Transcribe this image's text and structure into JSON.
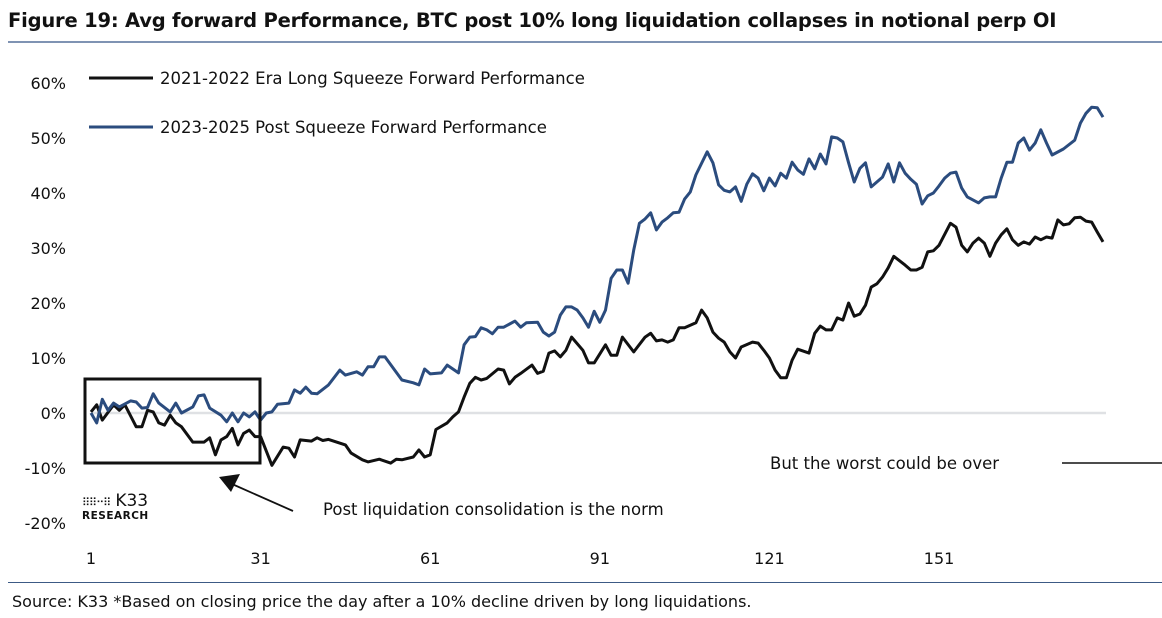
{
  "title": "Figure 19: Avg forward Performance, BTC post 10% long liquidation collapses in notional perp OI",
  "source": "Source: K33 *Based on closing price the day after a 10% decline driven by long liquidations.",
  "logo": {
    "name": "K33",
    "sub": "RESEARCH",
    "mark": "dot-grid-icon"
  },
  "colors": {
    "series_black": "#111111",
    "series_blue": "#2b4c7e",
    "zero_line": "#dfe1e4",
    "rule": "#7f93b3"
  },
  "annotations": {
    "box_label": "Post liquidation consolidation is the norm",
    "right_label": "But the worst could be over"
  },
  "chart_data": {
    "type": "line",
    "title": "Figure 19: Avg forward Performance, BTC post 10% long liquidation collapses in notional perp OI",
    "xlabel": "",
    "ylabel": "",
    "xlim": [
      1,
      180
    ],
    "ylim": [
      -20,
      60
    ],
    "x_ticks": [
      "1",
      "31",
      "61",
      "91",
      "121",
      "151"
    ],
    "y_ticks": [
      "60%",
      "50%",
      "40%",
      "30%",
      "20%",
      "10%",
      "0%",
      "-10%",
      "-20%"
    ],
    "grid": false,
    "legend": "top-left",
    "series": [
      {
        "name": "2021-2022 Era Long Squeeze Forward Performance",
        "color": "#111111",
        "points": [
          [
            1,
            0.2
          ],
          [
            2,
            1.5
          ],
          [
            3,
            -1.3
          ],
          [
            5,
            1.5
          ],
          [
            6,
            0.5
          ],
          [
            7,
            1.5
          ],
          [
            9,
            -2.5
          ],
          [
            10,
            -2.5
          ],
          [
            11,
            0.5
          ],
          [
            12,
            0.2
          ],
          [
            13,
            -1.8
          ],
          [
            14,
            -2.2
          ],
          [
            15,
            -0.4
          ],
          [
            16,
            -1.8
          ],
          [
            17,
            -2.5
          ],
          [
            19,
            -5.3
          ],
          [
            21,
            -5.3
          ],
          [
            22,
            -4.5
          ],
          [
            23,
            -7.6
          ],
          [
            24,
            -4.9
          ],
          [
            25,
            -4.3
          ],
          [
            26,
            -2.8
          ],
          [
            27,
            -5.8
          ],
          [
            28,
            -3.7
          ],
          [
            29,
            -3.1
          ],
          [
            30,
            -4.3
          ],
          [
            31,
            -4.3
          ],
          [
            33,
            -9.5
          ],
          [
            35,
            -6.2
          ],
          [
            36,
            -6.4
          ],
          [
            37,
            -8
          ],
          [
            38,
            -4.9
          ],
          [
            40,
            -5.1
          ],
          [
            41,
            -4.5
          ],
          [
            42,
            -5
          ],
          [
            43,
            -4.8
          ],
          [
            46,
            -5.8
          ],
          [
            47,
            -7.3
          ],
          [
            49,
            -8.5
          ],
          [
            50,
            -8.9
          ],
          [
            52,
            -8.4
          ],
          [
            54,
            -9.1
          ],
          [
            55,
            -8.4
          ],
          [
            56,
            -8.5
          ],
          [
            58,
            -8
          ],
          [
            59,
            -6.7
          ],
          [
            60,
            -8
          ],
          [
            61,
            -7.6
          ],
          [
            62,
            -3
          ],
          [
            64,
            -1.8
          ],
          [
            65,
            -0.7
          ],
          [
            66,
            0.2
          ],
          [
            67,
            2.9
          ],
          [
            68,
            5.4
          ],
          [
            69,
            6.5
          ],
          [
            70,
            6
          ],
          [
            71,
            6.3
          ],
          [
            73,
            8
          ],
          [
            74,
            7.8
          ],
          [
            75,
            5.3
          ],
          [
            76,
            6.5
          ],
          [
            77,
            7.2
          ],
          [
            79,
            8.7
          ],
          [
            80,
            7.2
          ],
          [
            81,
            7.6
          ],
          [
            82,
            10.9
          ],
          [
            83,
            11.3
          ],
          [
            84,
            10.2
          ],
          [
            85,
            11.4
          ],
          [
            86,
            13.8
          ],
          [
            88,
            11.4
          ],
          [
            89,
            9.1
          ],
          [
            90,
            9.1
          ],
          [
            92,
            12.4
          ],
          [
            93,
            10.5
          ],
          [
            94,
            10.5
          ],
          [
            95,
            13.8
          ],
          [
            97,
            11.1
          ],
          [
            99,
            13.8
          ],
          [
            100,
            14.5
          ],
          [
            101,
            13.1
          ],
          [
            102,
            13.3
          ],
          [
            103,
            12.9
          ],
          [
            104,
            13.3
          ],
          [
            105,
            15.5
          ],
          [
            106,
            15.5
          ],
          [
            108,
            16.4
          ],
          [
            109,
            18.7
          ],
          [
            110,
            17.3
          ],
          [
            111,
            14.7
          ],
          [
            112,
            13.6
          ],
          [
            113,
            12.9
          ],
          [
            114,
            11.1
          ],
          [
            115,
            10
          ],
          [
            116,
            12
          ],
          [
            118,
            12.9
          ],
          [
            119,
            12.7
          ],
          [
            120,
            11.4
          ],
          [
            121,
            10
          ],
          [
            122,
            7.8
          ],
          [
            123,
            6.4
          ],
          [
            124,
            6.4
          ],
          [
            125,
            9.6
          ],
          [
            126,
            11.6
          ],
          [
            128,
            10.9
          ],
          [
            129,
            14.5
          ],
          [
            130,
            15.8
          ],
          [
            131,
            15.1
          ],
          [
            132,
            15.1
          ],
          [
            133,
            17.3
          ],
          [
            134,
            16.9
          ],
          [
            135,
            20
          ],
          [
            136,
            17.6
          ],
          [
            137,
            18
          ],
          [
            138,
            19.6
          ],
          [
            139,
            22.9
          ],
          [
            140,
            23.5
          ],
          [
            141,
            24.7
          ],
          [
            142,
            26.4
          ],
          [
            143,
            28.5
          ],
          [
            145,
            26.9
          ],
          [
            146,
            26
          ],
          [
            147,
            26
          ],
          [
            148,
            26.5
          ],
          [
            149,
            29.3
          ],
          [
            150,
            29.5
          ],
          [
            151,
            30.5
          ],
          [
            153,
            34.5
          ],
          [
            154,
            33.8
          ],
          [
            155,
            30.5
          ],
          [
            156,
            29.3
          ],
          [
            157,
            30.9
          ],
          [
            158,
            31.8
          ],
          [
            159,
            30.9
          ],
          [
            160,
            28.5
          ],
          [
            161,
            30.9
          ],
          [
            162,
            32.4
          ],
          [
            163,
            33.5
          ],
          [
            164,
            31.5
          ],
          [
            165,
            30.5
          ],
          [
            166,
            31.1
          ],
          [
            167,
            30.7
          ],
          [
            168,
            32
          ],
          [
            169,
            31.5
          ],
          [
            170,
            32
          ],
          [
            171,
            31.8
          ],
          [
            172,
            35.1
          ],
          [
            173,
            34.2
          ],
          [
            174,
            34.4
          ],
          [
            175,
            35.5
          ],
          [
            176,
            35.6
          ],
          [
            177,
            34.9
          ],
          [
            178,
            34.7
          ],
          [
            179,
            32.9
          ],
          [
            180,
            31.1
          ]
        ]
      },
      {
        "name": "2023-2025 Post Squeeze Forward Performance",
        "color": "#2b4c7e",
        "points": [
          [
            1,
            0
          ],
          [
            2,
            -1.8
          ],
          [
            3,
            2.5
          ],
          [
            4,
            0.5
          ],
          [
            5,
            1.8
          ],
          [
            6,
            1.1
          ],
          [
            8,
            2.2
          ],
          [
            9,
            2
          ],
          [
            10,
            0.9
          ],
          [
            11,
            1
          ],
          [
            12,
            3.5
          ],
          [
            13,
            1.8
          ],
          [
            15,
            0.2
          ],
          [
            16,
            1.8
          ],
          [
            17,
            0
          ],
          [
            19,
            1.1
          ],
          [
            20,
            3.1
          ],
          [
            21,
            3.3
          ],
          [
            22,
            0.9
          ],
          [
            24,
            -0.4
          ],
          [
            25,
            -1.6
          ],
          [
            26,
            0
          ],
          [
            27,
            -1.6
          ],
          [
            28,
            0
          ],
          [
            29,
            -0.7
          ],
          [
            30,
            0.2
          ],
          [
            31,
            -1.3
          ],
          [
            32,
            0
          ],
          [
            33,
            0.2
          ],
          [
            34,
            1.6
          ],
          [
            36,
            1.8
          ],
          [
            37,
            4.2
          ],
          [
            38,
            3.6
          ],
          [
            39,
            4.7
          ],
          [
            40,
            3.6
          ],
          [
            41,
            3.5
          ],
          [
            43,
            5.1
          ],
          [
            45,
            7.8
          ],
          [
            46,
            6.9
          ],
          [
            48,
            7.5
          ],
          [
            49,
            6.9
          ],
          [
            50,
            8.4
          ],
          [
            51,
            8.4
          ],
          [
            52,
            10.2
          ],
          [
            53,
            10.2
          ],
          [
            56,
            6
          ],
          [
            58,
            5.5
          ],
          [
            59,
            5.1
          ],
          [
            60,
            8
          ],
          [
            61,
            7.1
          ],
          [
            63,
            7.3
          ],
          [
            64,
            8.7
          ],
          [
            66,
            7.3
          ],
          [
            67,
            12.4
          ],
          [
            68,
            13.8
          ],
          [
            69,
            13.9
          ],
          [
            70,
            15.5
          ],
          [
            71,
            15.1
          ],
          [
            72,
            14.4
          ],
          [
            73,
            15.6
          ],
          [
            74,
            15.6
          ],
          [
            76,
            16.7
          ],
          [
            77,
            15.6
          ],
          [
            78,
            16.4
          ],
          [
            80,
            16.5
          ],
          [
            81,
            14.7
          ],
          [
            82,
            14
          ],
          [
            83,
            14.7
          ],
          [
            84,
            17.8
          ],
          [
            85,
            19.3
          ],
          [
            86,
            19.3
          ],
          [
            87,
            18.7
          ],
          [
            88,
            17.3
          ],
          [
            89,
            15.6
          ],
          [
            90,
            18.5
          ],
          [
            91,
            16.5
          ],
          [
            92,
            18.7
          ],
          [
            93,
            24.5
          ],
          [
            94,
            26
          ],
          [
            95,
            26
          ],
          [
            96,
            23.6
          ],
          [
            97,
            29.6
          ],
          [
            98,
            34.5
          ],
          [
            99,
            35.3
          ],
          [
            100,
            36.4
          ],
          [
            101,
            33.3
          ],
          [
            102,
            34.7
          ],
          [
            103,
            35.5
          ],
          [
            104,
            36.4
          ],
          [
            105,
            36.5
          ],
          [
            106,
            38.9
          ],
          [
            107,
            40.2
          ],
          [
            108,
            43.3
          ],
          [
            110,
            47.5
          ],
          [
            111,
            45.5
          ],
          [
            112,
            41.5
          ],
          [
            113,
            40.5
          ],
          [
            114,
            40.2
          ],
          [
            115,
            41.1
          ],
          [
            116,
            38.5
          ],
          [
            117,
            41.6
          ],
          [
            118,
            43.5
          ],
          [
            119,
            42.7
          ],
          [
            120,
            40.4
          ],
          [
            121,
            42.7
          ],
          [
            122,
            41.3
          ],
          [
            123,
            43.6
          ],
          [
            124,
            42.7
          ],
          [
            125,
            45.6
          ],
          [
            126,
            44.2
          ],
          [
            127,
            43.4
          ],
          [
            128,
            46.2
          ],
          [
            129,
            44.4
          ],
          [
            130,
            47.1
          ],
          [
            131,
            45.3
          ],
          [
            132,
            50.2
          ],
          [
            133,
            50
          ],
          [
            134,
            49.3
          ],
          [
            135,
            45.5
          ],
          [
            136,
            42
          ],
          [
            137,
            44.5
          ],
          [
            138,
            45.5
          ],
          [
            139,
            41.1
          ],
          [
            141,
            42.9
          ],
          [
            142,
            45.3
          ],
          [
            143,
            42
          ],
          [
            144,
            45.5
          ],
          [
            145,
            43.6
          ],
          [
            146,
            42.5
          ],
          [
            147,
            41.6
          ],
          [
            148,
            38
          ],
          [
            149,
            39.5
          ],
          [
            150,
            40
          ],
          [
            151,
            41.3
          ],
          [
            152,
            42.7
          ],
          [
            153,
            43.6
          ],
          [
            154,
            43.8
          ],
          [
            155,
            40.9
          ],
          [
            156,
            39.3
          ],
          [
            158,
            38.2
          ],
          [
            159,
            39.1
          ],
          [
            160,
            39.3
          ],
          [
            161,
            39.3
          ],
          [
            162,
            42.7
          ],
          [
            163,
            45.6
          ],
          [
            164,
            45.6
          ],
          [
            165,
            49.1
          ],
          [
            166,
            50
          ],
          [
            167,
            47.8
          ],
          [
            168,
            49.1
          ],
          [
            169,
            51.5
          ],
          [
            170,
            49.1
          ],
          [
            171,
            46.9
          ],
          [
            173,
            48
          ],
          [
            175,
            49.6
          ],
          [
            176,
            52.7
          ],
          [
            177,
            54.5
          ],
          [
            178,
            55.6
          ],
          [
            179,
            55.5
          ],
          [
            180,
            53.8
          ]
        ]
      }
    ]
  }
}
